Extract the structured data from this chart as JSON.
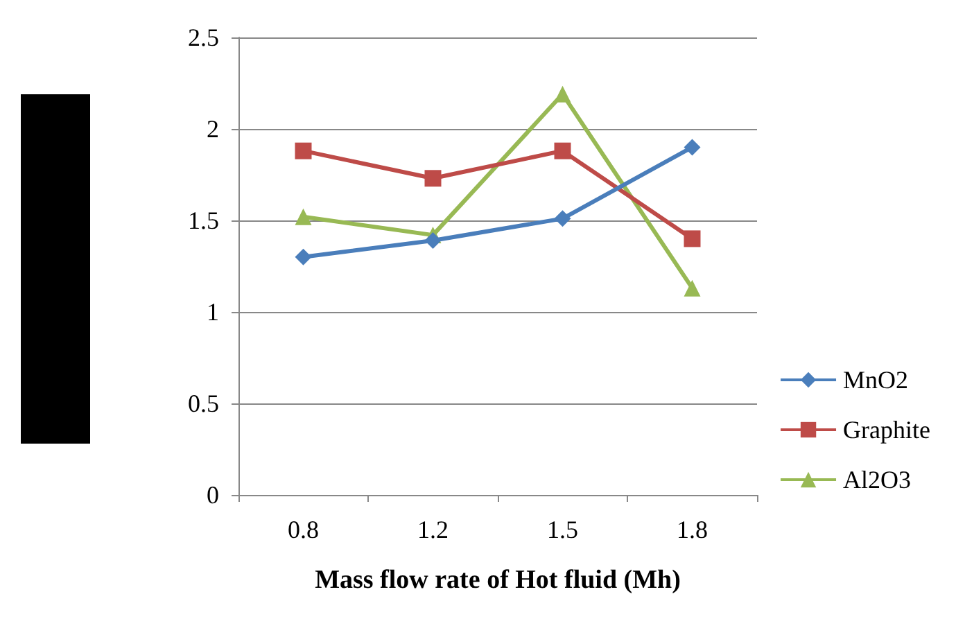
{
  "chart_data": {
    "type": "line",
    "xlabel": "Mass flow rate of Hot fluid (Mh)",
    "categories": [
      "0.8",
      "1.2",
      "1.5",
      "1.8"
    ],
    "series": [
      {
        "name": "MnO2",
        "color": "#4a7ebb",
        "values": [
          1.3,
          1.39,
          1.51,
          1.9
        ],
        "marker": "diamond"
      },
      {
        "name": "Graphite",
        "color": "#be4b48",
        "values": [
          1.88,
          1.73,
          1.88,
          1.4
        ],
        "marker": "square"
      },
      {
        "name": "Al2O3",
        "color": "#98b954",
        "values": [
          1.52,
          1.42,
          2.19,
          1.13
        ],
        "marker": "triangle"
      }
    ],
    "ylim": [
      0,
      2.5
    ],
    "yticks": [
      0,
      0.5,
      1,
      1.5,
      2,
      2.5
    ],
    "grid": "y",
    "legend": "right"
  }
}
